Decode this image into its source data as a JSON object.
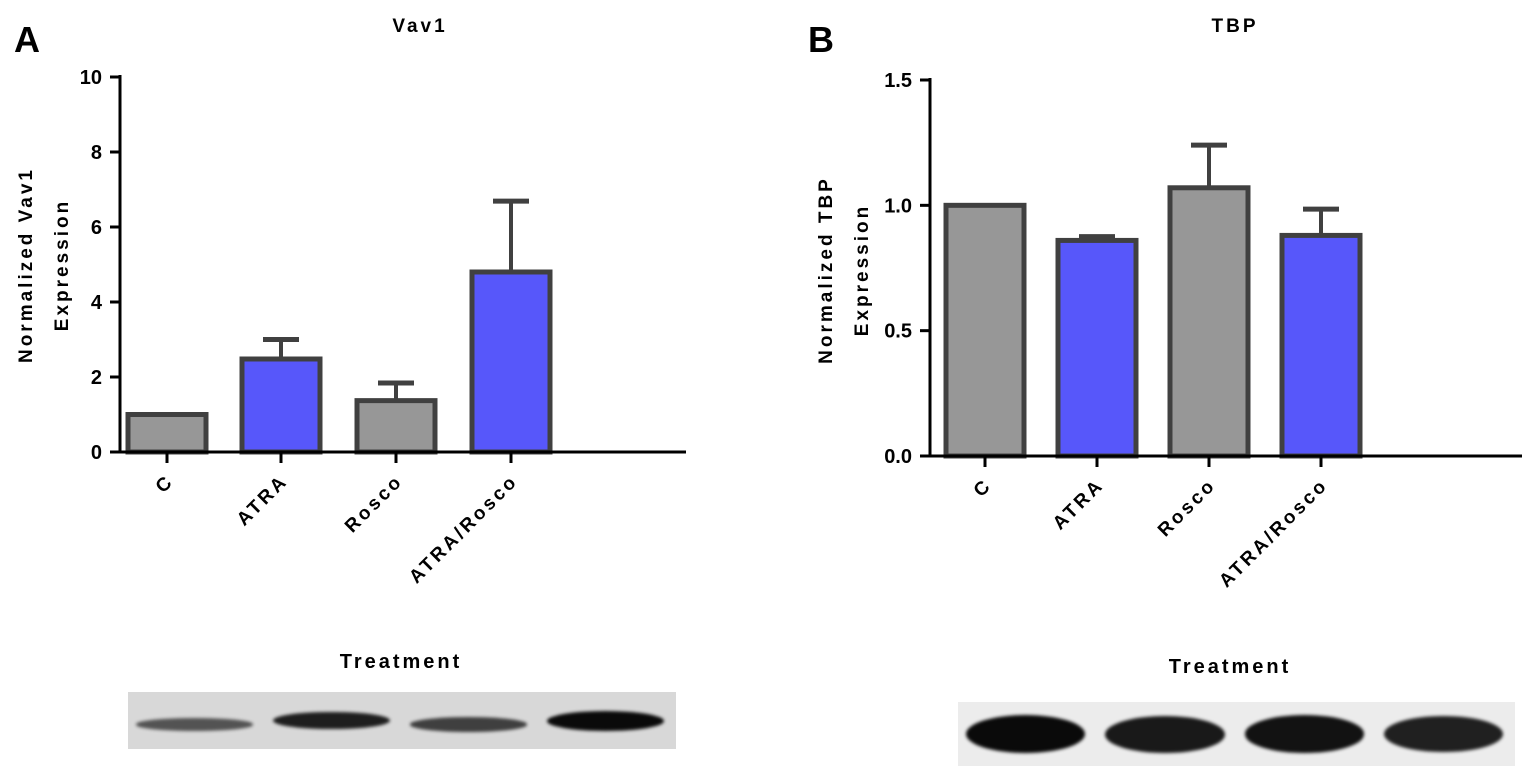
{
  "chart_data": [
    {
      "panel_label": "A",
      "type": "bar",
      "title": "Vav1",
      "xlabel": "Treatment",
      "ylabel_lines": [
        "Normalized Vav1",
        "Expression"
      ],
      "categories": [
        "C",
        "ATRA",
        "Rosco",
        "ATRA/Rosco"
      ],
      "values": [
        1.0,
        2.48,
        1.37,
        4.8
      ],
      "error_upper": [
        1.0,
        3.0,
        1.84,
        6.69
      ],
      "ylim": [
        0,
        10
      ],
      "yticks": [
        "0",
        "2",
        "4",
        "6",
        "8",
        "10"
      ],
      "ytick_values": [
        0,
        2,
        4,
        6,
        8,
        10
      ],
      "bar_colors": [
        "#979797",
        "#5757fa",
        "#979797",
        "#5757fa"
      ],
      "grid": false,
      "blot_intensity": [
        0.45,
        0.85,
        0.6,
        1.0
      ]
    },
    {
      "panel_label": "B",
      "type": "bar",
      "title": "TBP",
      "xlabel": "Treatment",
      "ylabel_lines": [
        "Normalized TBP",
        "Expression"
      ],
      "categories": [
        "C",
        "ATRA",
        "Rosco",
        "ATRA/Rosco"
      ],
      "values": [
        1.0,
        0.86,
        1.07,
        0.88
      ],
      "error_upper": [
        1.0,
        0.875,
        1.24,
        0.985
      ],
      "ylim": [
        0,
        1.5
      ],
      "yticks": [
        "0.0",
        "0.5",
        "1.0",
        "1.5"
      ],
      "ytick_values": [
        0,
        0.5,
        1.0,
        1.5
      ],
      "bar_colors": [
        "#979797",
        "#5757fa",
        "#979797",
        "#5757fa"
      ],
      "grid": false,
      "blot_intensity": [
        1.0,
        0.9,
        0.95,
        0.85
      ]
    }
  ],
  "colors": {
    "outline": "#404040",
    "gray_bar": "#979797",
    "blue_bar": "#5757fa"
  }
}
